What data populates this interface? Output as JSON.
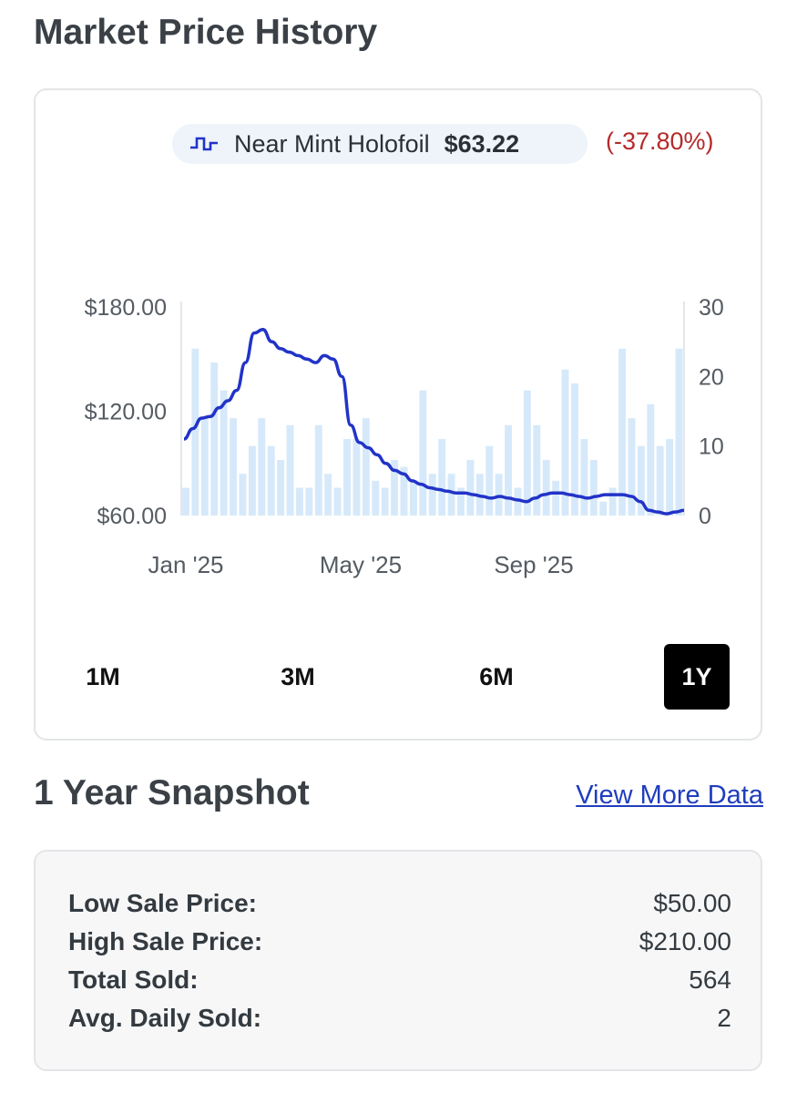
{
  "title": "Market Price History",
  "legend": {
    "label": "Near Mint Holofoil",
    "price": "$63.22",
    "change": "(-37.80%)"
  },
  "ranges": [
    {
      "label": "1M",
      "active": false
    },
    {
      "label": "3M",
      "active": false
    },
    {
      "label": "6M",
      "active": false
    },
    {
      "label": "1Y",
      "active": true
    }
  ],
  "snapshot": {
    "title": "1 Year Snapshot",
    "link": "View More Data",
    "stats": [
      {
        "label": "Low Sale Price:",
        "value": "$50.00"
      },
      {
        "label": "High Sale Price:",
        "value": "$210.00"
      },
      {
        "label": "Total Sold:",
        "value": "564"
      },
      {
        "label": "Avg. Daily Sold:",
        "value": "2"
      }
    ]
  },
  "colors": {
    "line": "#2233c8",
    "bars": "#d6e9fa",
    "change_negative": "#b52a2a",
    "active_range_bg": "#000000"
  },
  "chart_data": {
    "type": "line",
    "y_left": {
      "ticks": [
        "$180.00",
        "$120.00",
        "$60.00"
      ],
      "range": [
        60,
        180
      ]
    },
    "y_right": {
      "ticks": [
        "30",
        "20",
        "10",
        "0"
      ],
      "range": [
        0,
        30
      ]
    },
    "x_ticks": [
      "Jan '25",
      "May '25",
      "Sep '25"
    ],
    "series": [
      {
        "name": "Near Mint Holofoil",
        "axis": "left",
        "values": [
          104,
          110,
          116,
          117,
          122,
          126,
          132,
          148,
          165,
          167,
          160,
          156,
          154,
          152,
          150,
          148,
          152,
          150,
          140,
          112,
          102,
          99,
          95,
          90,
          86,
          84,
          80,
          78,
          76,
          75,
          74,
          73,
          73,
          72,
          71,
          70,
          71,
          70,
          69,
          68,
          70,
          72,
          73,
          73,
          72,
          71,
          70,
          71,
          72,
          72,
          72,
          71,
          68,
          63,
          62,
          61,
          62,
          63
        ]
      },
      {
        "name": "Quantity sold",
        "axis": "right",
        "values": [
          4,
          24,
          14,
          22,
          18,
          14,
          6,
          10,
          14,
          10,
          8,
          13,
          4,
          4,
          13,
          6,
          4,
          11,
          11,
          14,
          5,
          4,
          8,
          7,
          5,
          18,
          6,
          11,
          6,
          4,
          8,
          6,
          10,
          6,
          13,
          4,
          18,
          13,
          8,
          5,
          21,
          19,
          11,
          8,
          2,
          4,
          24,
          14,
          10,
          16,
          10,
          11,
          24
        ]
      }
    ]
  }
}
